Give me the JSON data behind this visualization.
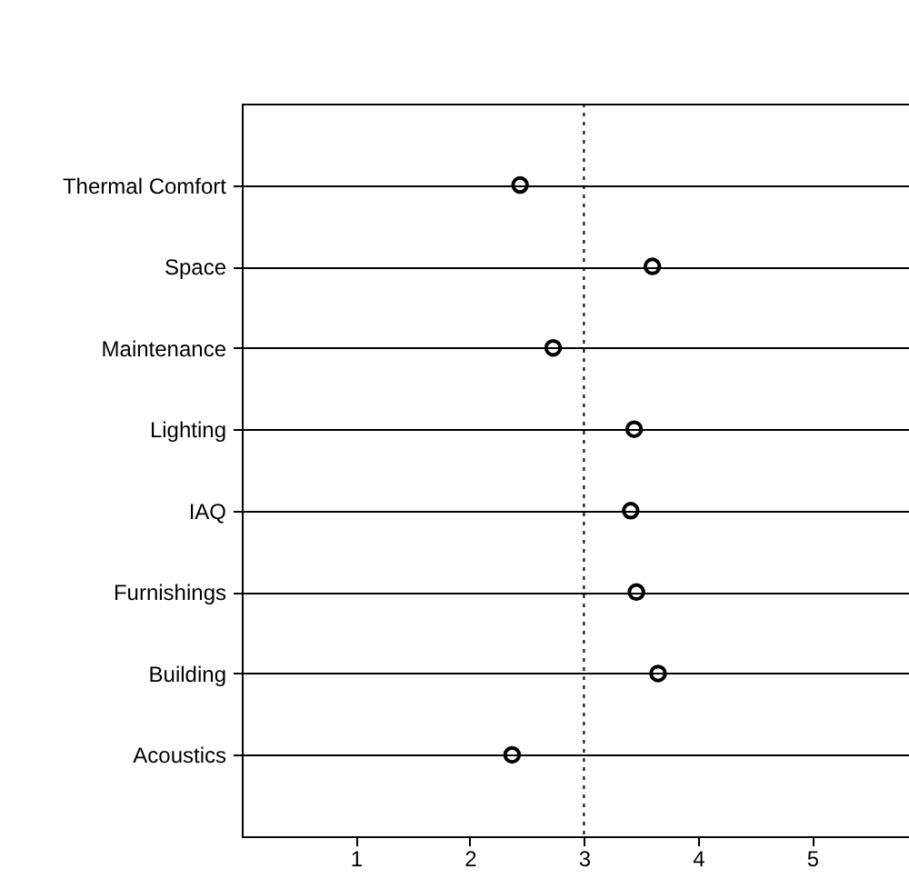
{
  "chart_data": {
    "type": "scatter",
    "categories": [
      "Thermal Comfort",
      "Space",
      "Maintenance",
      "Lighting",
      "IAQ",
      "Furnishings",
      "Building",
      "Acoustics"
    ],
    "orientation": "horizontal",
    "values": [
      2.44,
      3.6,
      2.73,
      3.44,
      3.41,
      3.46,
      3.65,
      2.37
    ],
    "color": "#000000",
    "marker": "circle",
    "xlim": [
      0,
      5.85
    ],
    "xticks": [
      1,
      2,
      3,
      4,
      5
    ],
    "grid": "y",
    "ref_lines": [
      {
        "axis": "x",
        "value": 3,
        "line_style": "dotted",
        "color": "#000000"
      }
    ]
  }
}
